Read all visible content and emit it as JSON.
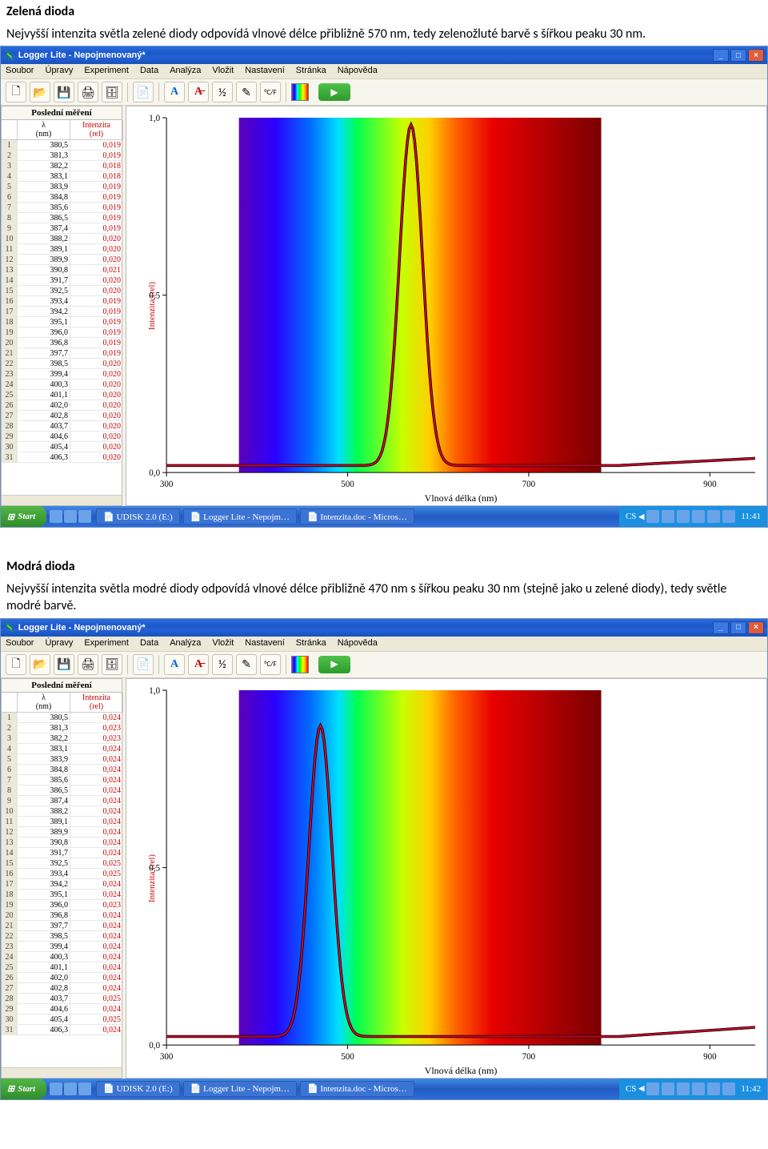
{
  "section1": {
    "title": "Zelená dioda",
    "desc": "Nejvyšší intenzita světla zelené diody odpovídá vlnové délce přibližně 570 nm, tedy zelenožluté barvě s šířkou peaku 30 nm."
  },
  "section2": {
    "title": "Modrá dioda",
    "desc": "Nejvyšší intenzita světla modré diody odpovídá vlnové délce přibližně 470 nm s šířkou peaku 30 nm (stejně jako u zelené diody), tedy světle modré barvě."
  },
  "app": {
    "title": "Logger Lite - Nepojmenovaný*",
    "menus": [
      "Soubor",
      "Úpravy",
      "Experiment",
      "Data",
      "Analýza",
      "Vložit",
      "Nastavení",
      "Stránka",
      "Nápověda"
    ],
    "toolbar_icons": [
      "new",
      "open",
      "save",
      "print",
      "savecfg",
      "page",
      "font",
      "strike",
      "fit",
      "pencil",
      "cf",
      "spectrum",
      "play"
    ]
  },
  "table": {
    "title": "Poslední měření",
    "col_lambda_1": "λ",
    "col_lambda_2": "(nm)",
    "col_int_1": "Intenzita",
    "col_int_2": "(rel)",
    "lambda": [
      "380,5",
      "381,3",
      "382,2",
      "383,1",
      "383,9",
      "384,8",
      "385,6",
      "386,5",
      "387,4",
      "388,2",
      "389,1",
      "389,9",
      "390,8",
      "391,7",
      "392,5",
      "393,4",
      "394,2",
      "395,1",
      "396,0",
      "396,8",
      "397,7",
      "398,5",
      "399,4",
      "400,3",
      "401,1",
      "402,0",
      "402,8",
      "403,7",
      "404,6",
      "405,4",
      "406,3"
    ],
    "intensity_green": [
      "0,019",
      "0,019",
      "0,018",
      "0,018",
      "0,019",
      "0,019",
      "0,019",
      "0,019",
      "0,019",
      "0,020",
      "0,020",
      "0,020",
      "0,021",
      "0,020",
      "0,020",
      "0,019",
      "0,019",
      "0,019",
      "0,019",
      "0,019",
      "0,019",
      "0,020",
      "0,020",
      "0,020",
      "0,020",
      "0,020",
      "0,020",
      "0,020",
      "0,020",
      "0,020",
      "0,020"
    ],
    "intensity_blue": [
      "0,024",
      "0,023",
      "0,023",
      "0,024",
      "0,024",
      "0,024",
      "0,024",
      "0,024",
      "0,024",
      "0,024",
      "0,024",
      "0,024",
      "0,024",
      "0,024",
      "0,025",
      "0,025",
      "0,024",
      "0,024",
      "0,023",
      "0,024",
      "0,024",
      "0,024",
      "0,024",
      "0,024",
      "0,024",
      "0,024",
      "0,024",
      "0,025",
      "0,024",
      "0,025",
      "0,024"
    ]
  },
  "chart": {
    "y_label": "Intenzita (rel)",
    "x_label": "Vlnová délka (nm)",
    "xlim": [
      300,
      950
    ],
    "ylim": [
      0.0,
      1.0
    ],
    "x_ticks": [
      300,
      500,
      700,
      900
    ],
    "y_ticks_labels": [
      "0,0",
      "0,5",
      "1,0"
    ],
    "y_ticks": [
      0.0,
      0.5,
      1.0
    ],
    "line_color": "#d4002a",
    "line_outline": "#000000",
    "line_width_outer": 3.5,
    "line_width_inner": 2,
    "axis_color": "#000000",
    "tick_font_size": 11,
    "spectrum_range_nm": [
      380,
      780
    ],
    "spectrum_stops": [
      {
        "nm": 380,
        "color": "#5a00b8"
      },
      {
        "nm": 420,
        "color": "#2a00ff"
      },
      {
        "nm": 460,
        "color": "#0070ff"
      },
      {
        "nm": 490,
        "color": "#00e0ff"
      },
      {
        "nm": 510,
        "color": "#00ff50"
      },
      {
        "nm": 560,
        "color": "#c8ff00"
      },
      {
        "nm": 590,
        "color": "#ffd000"
      },
      {
        "nm": 620,
        "color": "#ff6000"
      },
      {
        "nm": 660,
        "color": "#e80000"
      },
      {
        "nm": 780,
        "color": "#7a0000"
      }
    ],
    "green_curve": {
      "baseline": 0.02,
      "peak": {
        "center": 570,
        "height": 0.98,
        "hwhm": 15
      },
      "tail_rise_start": 800,
      "tail_rise_end_y": 0.04
    },
    "blue_curve": {
      "baseline": 0.024,
      "peak": {
        "center": 470,
        "height": 0.9,
        "hwhm": 15
      },
      "tail_rise_start": 800,
      "tail_rise_end_y": 0.05
    }
  },
  "taskbar": {
    "start": "Start",
    "tasks": [
      "UDISK 2.0 (E:)",
      "Logger Lite - Nepojm…",
      "Intenzita.doc - Micros…"
    ],
    "lang": "CS",
    "clock1": "11:41",
    "clock2": "11:42"
  },
  "colors": {
    "xp_blue": "#235bc0",
    "xp_green": "#2f8d29",
    "panel": "#ece9d8",
    "red_text": "#c00020"
  }
}
